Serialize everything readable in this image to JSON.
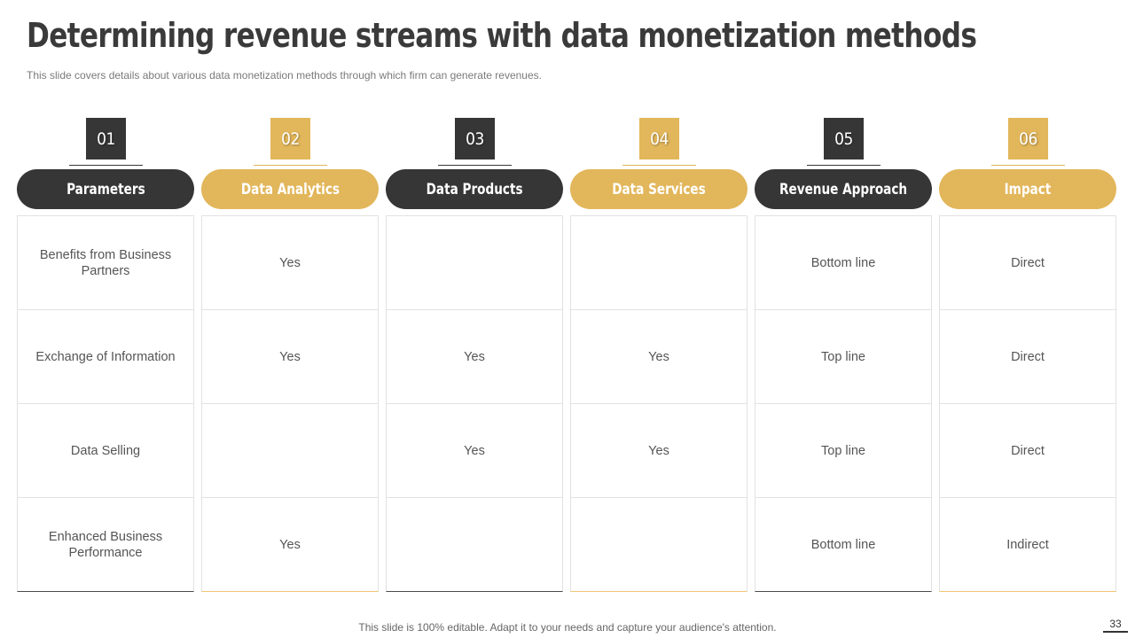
{
  "title": "Determining revenue streams with data monetization methods",
  "subtitle": "This slide covers details about various  data monetization methods through which firm can generate revenues.",
  "colors": {
    "dark": "#363636",
    "gold": "#e2b65a"
  },
  "columns": [
    {
      "number": "01",
      "header": "Parameters",
      "theme": "dark",
      "cells": [
        "Benefits from Business Partners",
        "Exchange of Information",
        "Data Selling",
        "Enhanced Business Performance"
      ]
    },
    {
      "number": "02",
      "header": "Data Analytics",
      "theme": "gold",
      "cells": [
        "Yes",
        "Yes",
        "",
        "Yes"
      ]
    },
    {
      "number": "03",
      "header": "Data Products",
      "theme": "dark",
      "cells": [
        "",
        "Yes",
        "Yes",
        ""
      ]
    },
    {
      "number": "04",
      "header": "Data Services",
      "theme": "gold",
      "cells": [
        "",
        "Yes",
        "Yes",
        ""
      ]
    },
    {
      "number": "05",
      "header": "Revenue Approach",
      "theme": "dark",
      "cells": [
        "Bottom line",
        "Top line",
        "Top line",
        "Bottom line"
      ]
    },
    {
      "number": "06",
      "header": "Impact",
      "theme": "gold",
      "cells": [
        "Direct",
        "Direct",
        "Direct",
        "Indirect"
      ]
    }
  ],
  "footer": "This slide is 100% editable. Adapt it to your needs and capture your audience's attention.",
  "page_number": "33"
}
